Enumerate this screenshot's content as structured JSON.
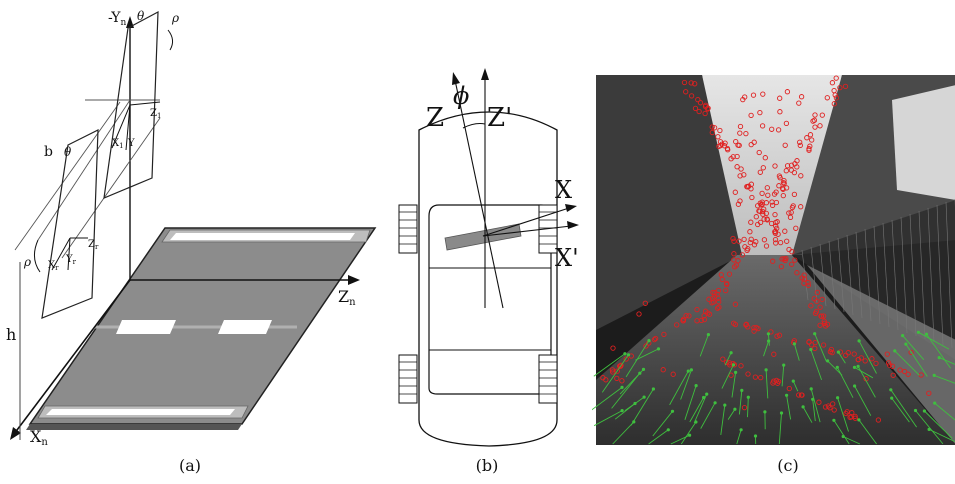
{
  "panel_a": {
    "caption": "(a)",
    "labels": {
      "neg_y": "-Y",
      "neg_y_sub": "n",
      "theta_top": "θ",
      "rho_top": "ρ",
      "z1": "Z",
      "z1_sub": "1",
      "x1": "X",
      "x1_sub": "1",
      "y1": "Y",
      "b": "b",
      "theta_left": "θ",
      "rho_left": "ρ",
      "zr": "Z",
      "zr_sub": "r",
      "xr": "X",
      "xr_sub": "r",
      "yr": "Y",
      "yr_sub": "r",
      "h": "h",
      "zn": "Z",
      "zn_sub": "n",
      "xn": "X",
      "xn_sub": "n"
    }
  },
  "panel_b": {
    "caption": "(b)",
    "labels": {
      "z": "Z",
      "phi": "ϕ",
      "z_prime": "Z'",
      "x": "X",
      "x_prime": "X'"
    }
  },
  "panel_c": {
    "caption": "(c)",
    "colors": {
      "outlier": "#e02020",
      "inlier": "#3fbf3f",
      "bg_dark": "#3a3a3a",
      "bg_light": "#cfcfcf"
    }
  }
}
